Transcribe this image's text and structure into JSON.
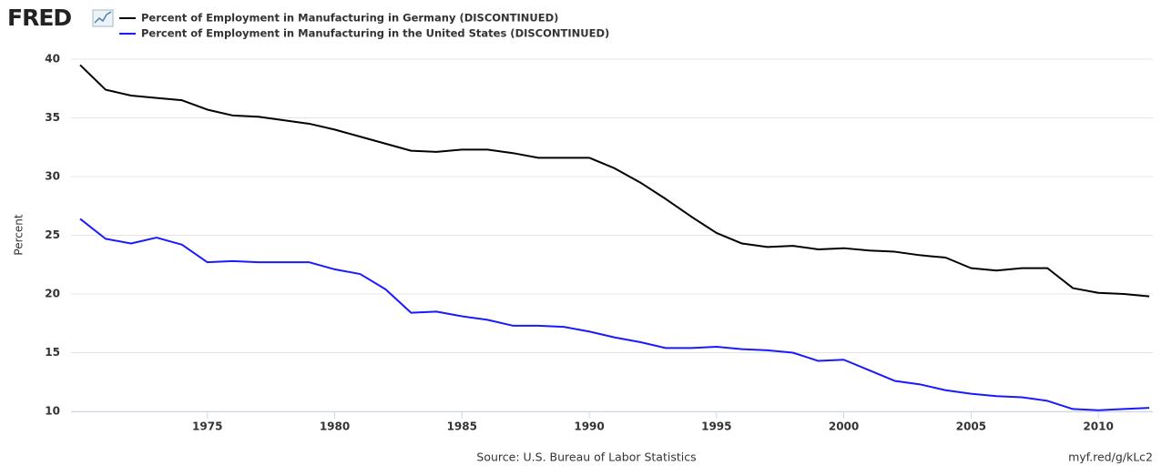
{
  "chart_data": {
    "type": "line",
    "logo": "FRED",
    "y_label": "Percent",
    "source": "Source: U.S. Bureau of Labor Statistics",
    "link": "myf.red/g/kLc2",
    "x": [
      1970,
      1971,
      1972,
      1973,
      1974,
      1975,
      1976,
      1977,
      1978,
      1979,
      1980,
      1981,
      1982,
      1983,
      1984,
      1985,
      1986,
      1987,
      1988,
      1989,
      1990,
      1991,
      1992,
      1993,
      1994,
      1995,
      1996,
      1997,
      1998,
      1999,
      2000,
      2001,
      2002,
      2003,
      2004,
      2005,
      2006,
      2007,
      2008,
      2009,
      2010,
      2011,
      2012
    ],
    "series": [
      {
        "name": "Percent of Employment in Manufacturing in Germany (DISCONTINUED)",
        "color": "#000000",
        "values": [
          39.5,
          37.4,
          36.9,
          36.7,
          36.5,
          35.7,
          35.2,
          35.1,
          34.8,
          34.5,
          34.0,
          33.4,
          32.8,
          32.2,
          32.1,
          32.3,
          32.3,
          32.0,
          31.6,
          31.6,
          31.6,
          30.7,
          29.5,
          28.1,
          26.6,
          25.2,
          24.3,
          24.0,
          24.1,
          23.8,
          23.9,
          23.7,
          23.6,
          23.3,
          23.1,
          22.2,
          22.0,
          22.2,
          22.2,
          20.5,
          20.1,
          20.0,
          19.8
        ]
      },
      {
        "name": "Percent of Employment in Manufacturing in the United States (DISCONTINUED)",
        "color": "#1a1aff",
        "values": [
          26.4,
          24.7,
          24.3,
          24.8,
          24.2,
          22.7,
          22.8,
          22.7,
          22.7,
          22.7,
          22.1,
          21.7,
          20.4,
          18.4,
          18.5,
          18.1,
          17.8,
          17.3,
          17.3,
          17.2,
          16.8,
          16.3,
          15.9,
          15.4,
          15.4,
          15.5,
          15.3,
          15.2,
          15.0,
          14.3,
          14.4,
          13.5,
          12.6,
          12.3,
          11.8,
          11.5,
          11.3,
          11.2,
          10.9,
          10.2,
          10.1,
          10.2,
          10.3
        ]
      }
    ],
    "xlim": [
      1970,
      2012
    ],
    "xticks": [
      1975,
      1980,
      1985,
      1990,
      1995,
      2000,
      2005,
      2010
    ],
    "ylim": [
      10,
      40
    ],
    "yticks": [
      10,
      15,
      20,
      25,
      30,
      35,
      40
    ],
    "grid": true
  }
}
